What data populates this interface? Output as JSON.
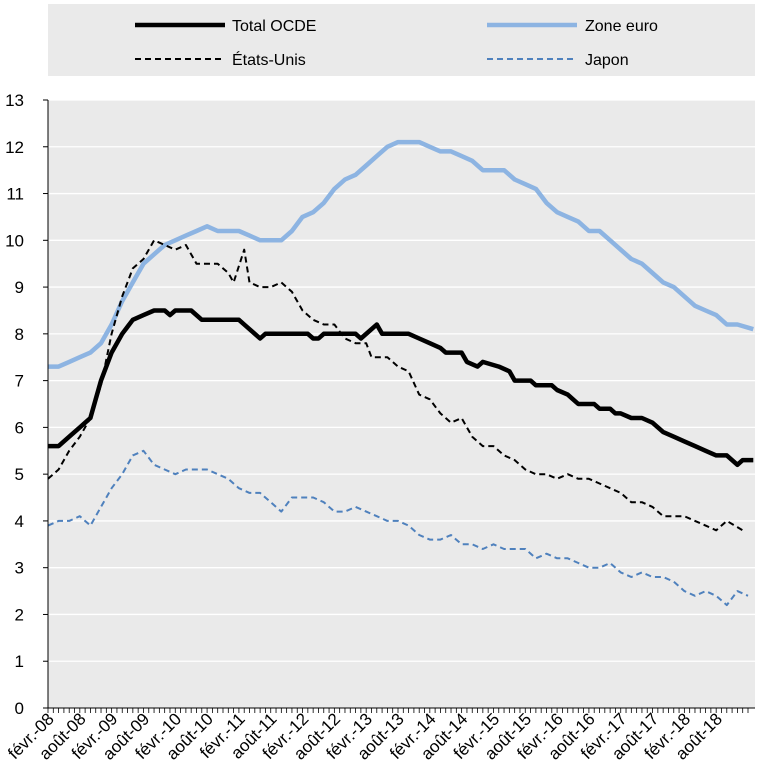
{
  "colors": {
    "background": "#ffffff",
    "plot_area": "#eaeaea",
    "legend_box": "#eaeaea",
    "grid": "#ffffff",
    "total_ocde": "#000000",
    "zone_euro": "#8db4e2",
    "etats_unis": "#000000",
    "japon": "#4f81bd"
  },
  "legend": {
    "items": [
      {
        "label": "Total OCDE",
        "series": "total_ocde",
        "style": "solid-thick"
      },
      {
        "label": "Zone euro",
        "series": "zone_euro",
        "style": "solid-thick"
      },
      {
        "label": "États-Unis",
        "series": "etats_unis",
        "style": "dashed"
      },
      {
        "label": "Japon",
        "series": "japon",
        "style": "dashed"
      }
    ]
  },
  "chart_data": {
    "type": "line",
    "title": "",
    "xlabel": "",
    "ylabel": "",
    "ylim": [
      0,
      13
    ],
    "yticks": [
      0,
      1,
      2,
      3,
      4,
      5,
      6,
      7,
      8,
      9,
      10,
      11,
      12,
      13
    ],
    "grid": "horizontal",
    "legend_position": "top",
    "x_start": "2008-02",
    "x_end": "2018-08",
    "xtick_labels": [
      "févr.-08",
      "août-08",
      "févr.-09",
      "août-09",
      "févr.-10",
      "août-10",
      "févr.-11",
      "août-11",
      "févr.-12",
      "août-12",
      "févr.-13",
      "août-13",
      "févr.-14",
      "août-14",
      "févr.-15",
      "août-15",
      "févr.-16",
      "août-16",
      "févr.-17",
      "août-17",
      "févr.-18",
      "août-18"
    ],
    "series": [
      {
        "name": "Total OCDE",
        "key": "total_ocde",
        "points": [
          [
            "2008-02",
            5.6
          ],
          [
            "2008-04",
            5.6
          ],
          [
            "2008-06",
            5.8
          ],
          [
            "2008-08",
            6.0
          ],
          [
            "2008-09",
            6.1
          ],
          [
            "2008-10",
            6.2
          ],
          [
            "2008-11",
            6.6
          ],
          [
            "2008-12",
            7.0
          ],
          [
            "2009-02",
            7.6
          ],
          [
            "2009-04",
            8.0
          ],
          [
            "2009-06",
            8.3
          ],
          [
            "2009-08",
            8.4
          ],
          [
            "2009-10",
            8.5
          ],
          [
            "2009-12",
            8.5
          ],
          [
            "2010-01",
            8.4
          ],
          [
            "2010-02",
            8.5
          ],
          [
            "2010-05",
            8.5
          ],
          [
            "2010-07",
            8.3
          ],
          [
            "2010-12",
            8.3
          ],
          [
            "2011-02",
            8.3
          ],
          [
            "2011-03",
            8.2
          ],
          [
            "2011-05",
            8.0
          ],
          [
            "2011-06",
            7.9
          ],
          [
            "2011-07",
            8.0
          ],
          [
            "2011-12",
            8.0
          ],
          [
            "2012-03",
            8.0
          ],
          [
            "2012-04",
            7.9
          ],
          [
            "2012-05",
            7.9
          ],
          [
            "2012-06",
            8.0
          ],
          [
            "2012-12",
            8.0
          ],
          [
            "2013-01",
            7.9
          ],
          [
            "2013-03",
            8.1
          ],
          [
            "2013-04",
            8.2
          ],
          [
            "2013-05",
            8.0
          ],
          [
            "2013-10",
            8.0
          ],
          [
            "2013-12",
            7.9
          ],
          [
            "2014-02",
            7.8
          ],
          [
            "2014-04",
            7.7
          ],
          [
            "2014-05",
            7.6
          ],
          [
            "2014-08",
            7.6
          ],
          [
            "2014-09",
            7.4
          ],
          [
            "2014-11",
            7.3
          ],
          [
            "2014-12",
            7.4
          ],
          [
            "2015-03",
            7.3
          ],
          [
            "2015-05",
            7.2
          ],
          [
            "2015-06",
            7.0
          ],
          [
            "2015-09",
            7.0
          ],
          [
            "2015-10",
            6.9
          ],
          [
            "2016-01",
            6.9
          ],
          [
            "2016-02",
            6.8
          ],
          [
            "2016-04",
            6.7
          ],
          [
            "2016-05",
            6.6
          ],
          [
            "2016-06",
            6.5
          ],
          [
            "2016-09",
            6.5
          ],
          [
            "2016-10",
            6.4
          ],
          [
            "2016-12",
            6.4
          ],
          [
            "2017-01",
            6.3
          ],
          [
            "2017-02",
            6.3
          ],
          [
            "2017-04",
            6.2
          ],
          [
            "2017-06",
            6.2
          ],
          [
            "2017-08",
            6.1
          ],
          [
            "2017-10",
            5.9
          ],
          [
            "2017-12",
            5.8
          ],
          [
            "2018-02",
            5.7
          ],
          [
            "2018-04",
            5.6
          ],
          [
            "2018-06",
            5.5
          ],
          [
            "2018-08",
            5.4
          ],
          [
            "2018-10",
            5.4
          ],
          [
            "2018-12",
            5.2
          ],
          [
            "2019-01",
            5.3
          ],
          [
            "2019-03",
            5.3
          ]
        ]
      },
      {
        "name": "Zone euro",
        "key": "zone_euro",
        "points": [
          [
            "2008-02",
            7.3
          ],
          [
            "2008-04",
            7.3
          ],
          [
            "2008-06",
            7.4
          ],
          [
            "2008-08",
            7.5
          ],
          [
            "2008-10",
            7.6
          ],
          [
            "2008-12",
            7.8
          ],
          [
            "2009-02",
            8.2
          ],
          [
            "2009-04",
            8.7
          ],
          [
            "2009-06",
            9.1
          ],
          [
            "2009-08",
            9.5
          ],
          [
            "2009-10",
            9.7
          ],
          [
            "2009-12",
            9.9
          ],
          [
            "2010-02",
            10.0
          ],
          [
            "2010-04",
            10.1
          ],
          [
            "2010-06",
            10.2
          ],
          [
            "2010-08",
            10.3
          ],
          [
            "2010-10",
            10.2
          ],
          [
            "2010-12",
            10.2
          ],
          [
            "2011-02",
            10.2
          ],
          [
            "2011-04",
            10.1
          ],
          [
            "2011-06",
            10.0
          ],
          [
            "2011-08",
            10.0
          ],
          [
            "2011-10",
            10.0
          ],
          [
            "2011-12",
            10.2
          ],
          [
            "2012-02",
            10.5
          ],
          [
            "2012-04",
            10.6
          ],
          [
            "2012-06",
            10.8
          ],
          [
            "2012-08",
            11.1
          ],
          [
            "2012-10",
            11.3
          ],
          [
            "2012-12",
            11.4
          ],
          [
            "2013-02",
            11.6
          ],
          [
            "2013-04",
            11.8
          ],
          [
            "2013-06",
            12.0
          ],
          [
            "2013-08",
            12.1
          ],
          [
            "2013-10",
            12.1
          ],
          [
            "2013-12",
            12.1
          ],
          [
            "2014-02",
            12.0
          ],
          [
            "2014-04",
            11.9
          ],
          [
            "2014-06",
            11.9
          ],
          [
            "2014-08",
            11.8
          ],
          [
            "2014-10",
            11.7
          ],
          [
            "2014-12",
            11.5
          ],
          [
            "2015-02",
            11.5
          ],
          [
            "2015-04",
            11.5
          ],
          [
            "2015-06",
            11.3
          ],
          [
            "2015-08",
            11.2
          ],
          [
            "2015-10",
            11.1
          ],
          [
            "2015-12",
            10.8
          ],
          [
            "2016-02",
            10.6
          ],
          [
            "2016-04",
            10.5
          ],
          [
            "2016-06",
            10.4
          ],
          [
            "2016-08",
            10.2
          ],
          [
            "2016-10",
            10.2
          ],
          [
            "2016-12",
            10.0
          ],
          [
            "2017-02",
            9.8
          ],
          [
            "2017-04",
            9.6
          ],
          [
            "2017-06",
            9.5
          ],
          [
            "2017-08",
            9.3
          ],
          [
            "2017-10",
            9.1
          ],
          [
            "2017-12",
            9.0
          ],
          [
            "2018-02",
            8.8
          ],
          [
            "2018-04",
            8.6
          ],
          [
            "2018-06",
            8.5
          ],
          [
            "2018-08",
            8.4
          ],
          [
            "2018-10",
            8.2
          ],
          [
            "2018-12",
            8.2
          ],
          [
            "2019-03",
            8.1
          ]
        ]
      },
      {
        "name": "États-Unis",
        "key": "etats_unis",
        "points": [
          [
            "2008-02",
            4.9
          ],
          [
            "2008-04",
            5.1
          ],
          [
            "2008-06",
            5.5
          ],
          [
            "2008-08",
            5.8
          ],
          [
            "2008-10",
            6.2
          ],
          [
            "2008-12",
            6.9
          ],
          [
            "2009-02",
            8.0
          ],
          [
            "2009-04",
            8.8
          ],
          [
            "2009-06",
            9.4
          ],
          [
            "2009-08",
            9.6
          ],
          [
            "2009-10",
            10.0
          ],
          [
            "2009-12",
            9.9
          ],
          [
            "2010-02",
            9.8
          ],
          [
            "2010-04",
            9.9
          ],
          [
            "2010-06",
            9.5
          ],
          [
            "2010-08",
            9.5
          ],
          [
            "2010-10",
            9.5
          ],
          [
            "2010-12",
            9.3
          ],
          [
            "2011-01",
            9.1
          ],
          [
            "2011-03",
            9.8
          ],
          [
            "2011-04",
            9.1
          ],
          [
            "2011-06",
            9.0
          ],
          [
            "2011-08",
            9.0
          ],
          [
            "2011-10",
            9.1
          ],
          [
            "2011-12",
            8.9
          ],
          [
            "2012-02",
            8.5
          ],
          [
            "2012-04",
            8.3
          ],
          [
            "2012-06",
            8.2
          ],
          [
            "2012-08",
            8.2
          ],
          [
            "2012-10",
            7.9
          ],
          [
            "2012-12",
            7.8
          ],
          [
            "2013-02",
            7.8
          ],
          [
            "2013-03",
            7.5
          ],
          [
            "2013-06",
            7.5
          ],
          [
            "2013-08",
            7.3
          ],
          [
            "2013-10",
            7.2
          ],
          [
            "2013-12",
            6.7
          ],
          [
            "2014-02",
            6.6
          ],
          [
            "2014-04",
            6.3
          ],
          [
            "2014-06",
            6.1
          ],
          [
            "2014-08",
            6.2
          ],
          [
            "2014-10",
            5.8
          ],
          [
            "2014-12",
            5.6
          ],
          [
            "2015-02",
            5.6
          ],
          [
            "2015-04",
            5.4
          ],
          [
            "2015-06",
            5.3
          ],
          [
            "2015-08",
            5.1
          ],
          [
            "2015-10",
            5.0
          ],
          [
            "2015-12",
            5.0
          ],
          [
            "2016-02",
            4.9
          ],
          [
            "2016-04",
            5.0
          ],
          [
            "2016-06",
            4.9
          ],
          [
            "2016-08",
            4.9
          ],
          [
            "2016-10",
            4.8
          ],
          [
            "2016-12",
            4.7
          ],
          [
            "2017-02",
            4.6
          ],
          [
            "2017-04",
            4.4
          ],
          [
            "2017-06",
            4.4
          ],
          [
            "2017-08",
            4.3
          ],
          [
            "2017-10",
            4.1
          ],
          [
            "2017-12",
            4.1
          ],
          [
            "2018-02",
            4.1
          ],
          [
            "2018-04",
            4.0
          ],
          [
            "2018-06",
            3.9
          ],
          [
            "2018-08",
            3.8
          ],
          [
            "2018-10",
            4.0
          ],
          [
            "2019-01",
            3.8
          ]
        ]
      },
      {
        "name": "Japon",
        "key": "japon",
        "points": [
          [
            "2008-02",
            3.9
          ],
          [
            "2008-04",
            4.0
          ],
          [
            "2008-06",
            4.0
          ],
          [
            "2008-08",
            4.1
          ],
          [
            "2008-10",
            3.9
          ],
          [
            "2008-12",
            4.3
          ],
          [
            "2009-02",
            4.7
          ],
          [
            "2009-04",
            5.0
          ],
          [
            "2009-06",
            5.4
          ],
          [
            "2009-08",
            5.5
          ],
          [
            "2009-10",
            5.2
          ],
          [
            "2009-12",
            5.1
          ],
          [
            "2010-02",
            5.0
          ],
          [
            "2010-04",
            5.1
          ],
          [
            "2010-06",
            5.1
          ],
          [
            "2010-08",
            5.1
          ],
          [
            "2010-10",
            5.0
          ],
          [
            "2010-12",
            4.9
          ],
          [
            "2011-02",
            4.7
          ],
          [
            "2011-04",
            4.6
          ],
          [
            "2011-06",
            4.6
          ],
          [
            "2011-08",
            4.4
          ],
          [
            "2011-10",
            4.2
          ],
          [
            "2011-12",
            4.5
          ],
          [
            "2012-02",
            4.5
          ],
          [
            "2012-04",
            4.5
          ],
          [
            "2012-06",
            4.4
          ],
          [
            "2012-08",
            4.2
          ],
          [
            "2012-10",
            4.2
          ],
          [
            "2012-12",
            4.3
          ],
          [
            "2013-02",
            4.2
          ],
          [
            "2013-04",
            4.1
          ],
          [
            "2013-06",
            4.0
          ],
          [
            "2013-08",
            4.0
          ],
          [
            "2013-10",
            3.9
          ],
          [
            "2013-12",
            3.7
          ],
          [
            "2014-02",
            3.6
          ],
          [
            "2014-04",
            3.6
          ],
          [
            "2014-06",
            3.7
          ],
          [
            "2014-08",
            3.5
          ],
          [
            "2014-10",
            3.5
          ],
          [
            "2014-12",
            3.4
          ],
          [
            "2015-02",
            3.5
          ],
          [
            "2015-04",
            3.4
          ],
          [
            "2015-06",
            3.4
          ],
          [
            "2015-08",
            3.4
          ],
          [
            "2015-10",
            3.2
          ],
          [
            "2015-12",
            3.3
          ],
          [
            "2016-02",
            3.2
          ],
          [
            "2016-04",
            3.2
          ],
          [
            "2016-06",
            3.1
          ],
          [
            "2016-08",
            3.0
          ],
          [
            "2016-10",
            3.0
          ],
          [
            "2016-12",
            3.1
          ],
          [
            "2017-02",
            2.9
          ],
          [
            "2017-04",
            2.8
          ],
          [
            "2017-06",
            2.9
          ],
          [
            "2017-08",
            2.8
          ],
          [
            "2017-10",
            2.8
          ],
          [
            "2017-12",
            2.7
          ],
          [
            "2018-02",
            2.5
          ],
          [
            "2018-04",
            2.4
          ],
          [
            "2018-06",
            2.5
          ],
          [
            "2018-08",
            2.4
          ],
          [
            "2018-10",
            2.2
          ],
          [
            "2018-12",
            2.5
          ],
          [
            "2019-02",
            2.4
          ]
        ]
      }
    ]
  }
}
